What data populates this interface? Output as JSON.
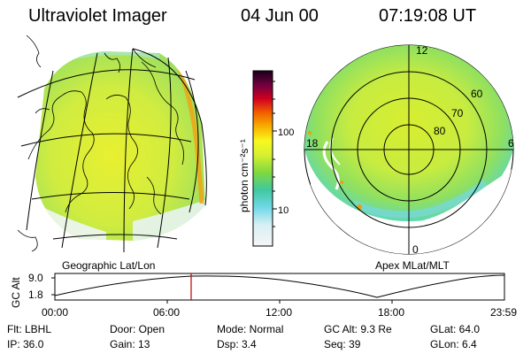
{
  "header": {
    "instrument": "Ultraviolet Imager",
    "date": "04 Jun 00",
    "time": "07:19:08 UT"
  },
  "colorbar": {
    "unit_label": "photon cm⁻²s⁻¹",
    "ticks": [
      "100",
      "10"
    ],
    "colors": [
      "#f5f5f5",
      "#80e0f0",
      "#60c8a0",
      "#a0e040",
      "#f0f020",
      "#f0a000",
      "#e04000",
      "#c00030",
      "#500040",
      "#200020"
    ]
  },
  "left_panel": {
    "label": "Geographic Lat/Lon"
  },
  "right_panel": {
    "label": "Apex MLat/MLT",
    "mlt_labels": {
      "top": "12",
      "left": "18",
      "right": "6",
      "bottom": "0"
    },
    "lat_labels": [
      "60",
      "70",
      "80"
    ]
  },
  "orbit_plot": {
    "ylabel": "GC Alt",
    "yticks": [
      "9.0",
      "1.8"
    ],
    "xticks": [
      "00:00",
      "06:00",
      "12:00",
      "18:00",
      "23:59"
    ],
    "current_time_marker_color": "#c00000"
  },
  "info": {
    "row1": {
      "flt": "Flt: LBHL",
      "door": "Door: Open",
      "mode": "Mode: Normal",
      "gcalt": "GC Alt: 9.3 Re",
      "glat": "GLat:  64.0"
    },
    "row2": {
      "ip": "IP: 36.0",
      "gain": "Gain: 13",
      "dsp": "Dsp:    3.4",
      "seq": "Seq: 39",
      "glon": "GLon:  6.4"
    }
  }
}
